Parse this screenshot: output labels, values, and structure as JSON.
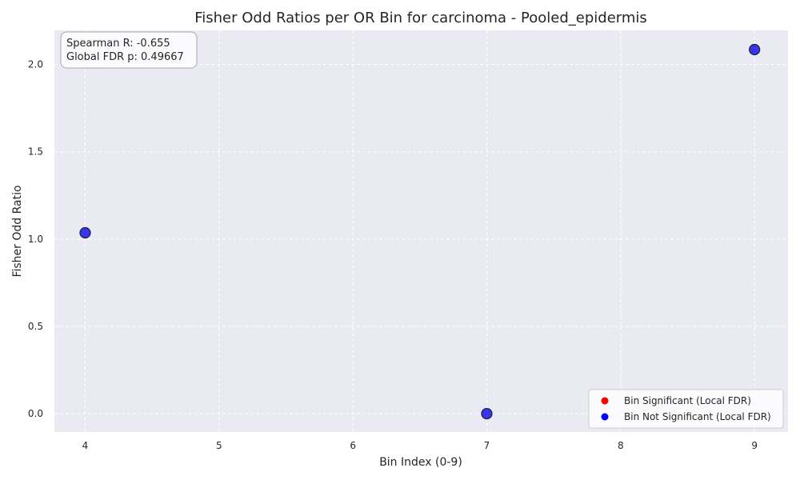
{
  "chart_data": {
    "type": "scatter",
    "title": "Fisher Odd Ratios per OR Bin for carcinoma - Pooled_epidermis",
    "xlabel": "Bin Index (0-9)",
    "ylabel": "Fisher Odd Ratio",
    "xlim": [
      3.77,
      9.25
    ],
    "ylim": [
      -0.105,
      2.195
    ],
    "xticks": [
      4,
      5,
      6,
      7,
      8,
      9
    ],
    "yticks": [
      0.0,
      0.5,
      1.0,
      1.5,
      2.0
    ],
    "xtick_labels": [
      "4",
      "5",
      "6",
      "7",
      "8",
      "9"
    ],
    "ytick_labels": [
      "0.0",
      "0.5",
      "1.0",
      "1.5",
      "2.0"
    ],
    "grid": true,
    "legend_position": "lower-right",
    "series": [
      {
        "name": "Bin Significant (Local FDR)",
        "color": "#ff0000",
        "x": [],
        "y": []
      },
      {
        "name": "Bin Not Significant (Local FDR)",
        "color": "#0000ff",
        "x": [
          4,
          7,
          9
        ],
        "y": [
          1.036,
          0.0,
          2.085
        ]
      }
    ],
    "annotations": {
      "spearman": "Spearman R: -0.655",
      "fdr": "Global FDR p: 0.49667"
    },
    "colors": {
      "plot_background": "#eaeaf2",
      "grid": "#ffffff",
      "marker_fill": "#2424e8",
      "marker_edge": "#1c1c40"
    }
  }
}
